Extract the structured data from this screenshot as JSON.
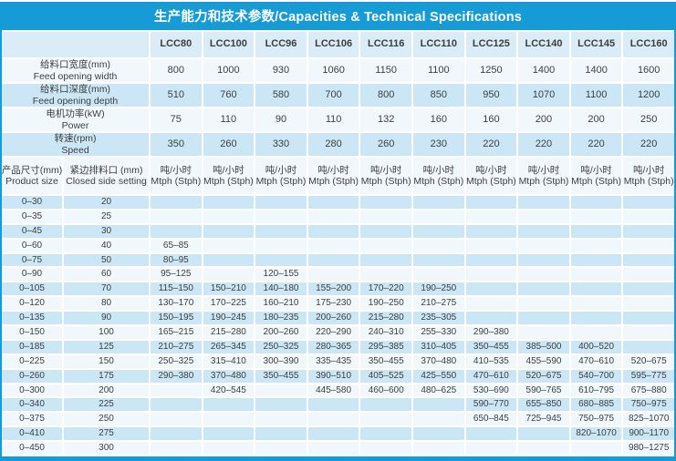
{
  "title": "生产能力和技术参数/Capacities & Technical Specifications",
  "accent_color": "#169bd7",
  "row_colors": {
    "header": "#d9ecf7",
    "blue": "#cbe7f5",
    "white": "#f1f8fc"
  },
  "models": [
    "LCC80",
    "LCC100",
    "LCC96",
    "LCC106",
    "LCC116",
    "LCC110",
    "LCC125",
    "LCC140",
    "LCC145",
    "LCC160"
  ],
  "spec_rows": [
    {
      "label_zh": "给料口宽度(mm)",
      "label_en": "Feed opening width",
      "values": [
        "800",
        "1000",
        "930",
        "1060",
        "1150",
        "1100",
        "1250",
        "1400",
        "1400",
        "1600"
      ]
    },
    {
      "label_zh": "给料口深度(mm)",
      "label_en": "Feed opening depth",
      "values": [
        "510",
        "760",
        "580",
        "700",
        "800",
        "850",
        "950",
        "1070",
        "1100",
        "1200"
      ]
    },
    {
      "label_zh": "电机功率(kW)",
      "label_en": "Power",
      "values": [
        "75",
        "110",
        "90",
        "110",
        "132",
        "160",
        "160",
        "200",
        "200",
        "250"
      ]
    },
    {
      "label_zh": "转速(rpm)",
      "label_en": "Speed",
      "values": [
        "350",
        "260",
        "330",
        "280",
        "260",
        "230",
        "220",
        "220",
        "220",
        "220"
      ]
    }
  ],
  "capacity_header": {
    "product_size_zh": "产品尺寸(mm)",
    "product_size_en": "Product size",
    "css_zh": "紧边排料口 (mm)",
    "css_en": "Closed side setting",
    "unit_zh": "吨/小时",
    "unit_en": "Mtph (Stph)"
  },
  "capacity_rows": [
    {
      "size": "0–30",
      "css": "20",
      "values": [
        "",
        "",
        "",
        "",
        "",
        "",
        "",
        "",
        "",
        ""
      ]
    },
    {
      "size": "0–35",
      "css": "25",
      "values": [
        "",
        "",
        "",
        "",
        "",
        "",
        "",
        "",
        "",
        ""
      ]
    },
    {
      "size": "0–45",
      "css": "30",
      "values": [
        "",
        "",
        "",
        "",
        "",
        "",
        "",
        "",
        "",
        ""
      ]
    },
    {
      "size": "0–60",
      "css": "40",
      "values": [
        "65–85",
        "",
        "",
        "",
        "",
        "",
        "",
        "",
        "",
        ""
      ]
    },
    {
      "size": "0–75",
      "css": "50",
      "values": [
        "80–95",
        "",
        "",
        "",
        "",
        "",
        "",
        "",
        "",
        ""
      ]
    },
    {
      "size": "0–90",
      "css": "60",
      "values": [
        "95–125",
        "",
        "120–155",
        "",
        "",
        "",
        "",
        "",
        "",
        ""
      ]
    },
    {
      "size": "0–105",
      "css": "70",
      "values": [
        "115–150",
        "150–210",
        "140–180",
        "155–200",
        "170–220",
        "190–250",
        "",
        "",
        "",
        ""
      ]
    },
    {
      "size": "0–120",
      "css": "80",
      "values": [
        "130–170",
        "170–225",
        "160–210",
        "175–230",
        "190–250",
        "210–275",
        "",
        "",
        "",
        ""
      ]
    },
    {
      "size": "0–135",
      "css": "90",
      "values": [
        "150–195",
        "190–245",
        "180–235",
        "200–260",
        "215–280",
        "235–305",
        "",
        "",
        "",
        ""
      ]
    },
    {
      "size": "0–150",
      "css": "100",
      "values": [
        "165–215",
        "215–280",
        "200–260",
        "220–290",
        "240–310",
        "255–330",
        "290–380",
        "",
        "",
        ""
      ]
    },
    {
      "size": "0–185",
      "css": "125",
      "values": [
        "210–275",
        "265–345",
        "250–325",
        "280–365",
        "295–385",
        "310–405",
        "350–455",
        "385–500",
        "400–520",
        ""
      ]
    },
    {
      "size": "0–225",
      "css": "150",
      "values": [
        "250–325",
        "315–410",
        "300–390",
        "335–435",
        "350–455",
        "370–480",
        "410–535",
        "455–590",
        "470–610",
        "520–675"
      ]
    },
    {
      "size": "0–260",
      "css": "175",
      "values": [
        "290–380",
        "370–480",
        "350–455",
        "390–510",
        "405–525",
        "425–550",
        "470–610",
        "520–675",
        "540–700",
        "595–775"
      ]
    },
    {
      "size": "0–300",
      "css": "200",
      "values": [
        "",
        "420–545",
        "",
        "445–580",
        "460–600",
        "480–625",
        "530–690",
        "590–765",
        "610–795",
        "675–880"
      ]
    },
    {
      "size": "0–340",
      "css": "225",
      "values": [
        "",
        "",
        "",
        "",
        "",
        "",
        "590–770",
        "655–850",
        "680–885",
        "750–975"
      ]
    },
    {
      "size": "0–375",
      "css": "250",
      "values": [
        "",
        "",
        "",
        "",
        "",
        "",
        "650–845",
        "725–945",
        "750–975",
        "825–1070"
      ]
    },
    {
      "size": "0–410",
      "css": "275",
      "values": [
        "",
        "",
        "",
        "",
        "",
        "",
        "",
        "",
        "820–1070",
        "900–1170"
      ]
    },
    {
      "size": "0–450",
      "css": "300",
      "values": [
        "",
        "",
        "",
        "",
        "",
        "",
        "",
        "",
        "",
        "980–1275"
      ]
    }
  ]
}
